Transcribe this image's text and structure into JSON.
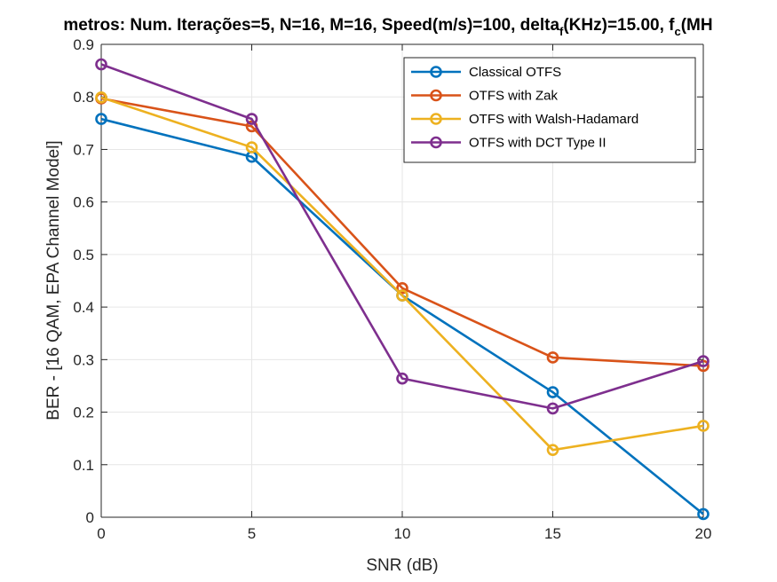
{
  "chart_data": {
    "type": "line",
    "title": {
      "parts": [
        {
          "text": "metros: Num. Iterações=5, N=16, M=16, Speed(m/s)=100, delta"
        },
        {
          "text": "f",
          "sub": true
        },
        {
          "text": "(KHz)=15.00, f"
        },
        {
          "text": "c",
          "sub": true
        },
        {
          "text": "(MH"
        }
      ]
    },
    "xlabel": "SNR (dB)",
    "ylabel": "BER - [16 QAM, EPA Channel Model]",
    "xlim": [
      0,
      20
    ],
    "ylim": [
      0,
      0.9
    ],
    "xticks": [
      0,
      5,
      10,
      15,
      20
    ],
    "yticks": [
      0,
      0.1,
      0.2,
      0.3,
      0.4,
      0.5,
      0.6,
      0.7,
      0.8,
      0.9
    ],
    "xtick_labels": [
      "0",
      "5",
      "10",
      "15",
      "20"
    ],
    "ytick_labels": [
      "0",
      "0.1",
      "0.2",
      "0.3",
      "0.4",
      "0.5",
      "0.6",
      "0.7",
      "0.8",
      "0.9"
    ],
    "grid": true,
    "legend_position": "top-right",
    "marker": "circle",
    "x": [
      0,
      5,
      10,
      15,
      20
    ],
    "series": [
      {
        "name": "Classical OTFS",
        "color": "#0072BD",
        "values": [
          0.758,
          0.686,
          0.422,
          0.238,
          0.006
        ]
      },
      {
        "name": "OTFS with Zak",
        "color": "#D95319",
        "values": [
          0.797,
          0.744,
          0.436,
          0.304,
          0.288
        ]
      },
      {
        "name": "OTFS with Walsh-Hadamard",
        "color": "#EDB120",
        "values": [
          0.799,
          0.704,
          0.422,
          0.128,
          0.174
        ]
      },
      {
        "name": "OTFS with DCT Type II",
        "color": "#7E2F8E",
        "values": [
          0.862,
          0.758,
          0.264,
          0.207,
          0.297
        ]
      }
    ]
  }
}
